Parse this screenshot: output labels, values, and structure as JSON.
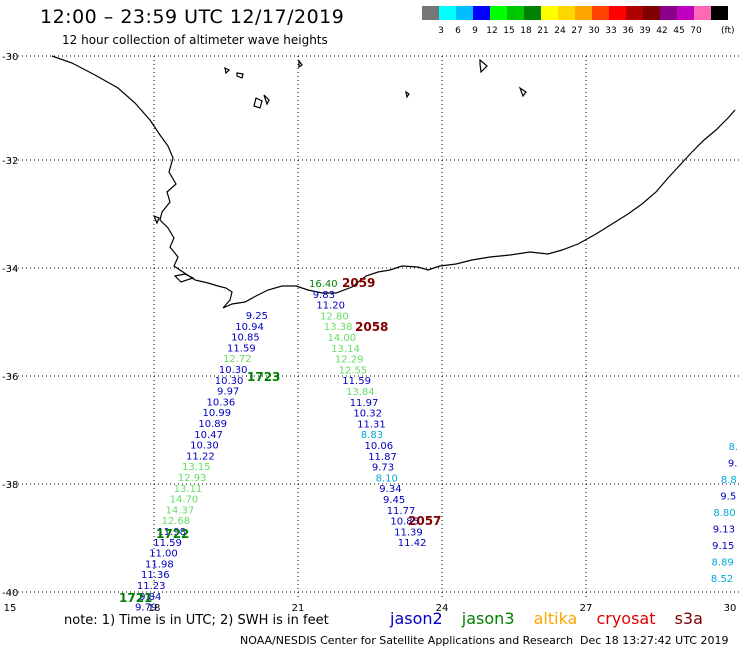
{
  "header": {
    "title": "12:00 – 23:59 UTC 12/17/2019",
    "subtitle": "12 hour collection of altimeter wave heights"
  },
  "colorbar": {
    "colors": [
      "#777777",
      "#00ffff",
      "#00bfff",
      "#0000ff",
      "#00ff00",
      "#00c800",
      "#008000",
      "#ffff00",
      "#ffd700",
      "#ffa500",
      "#ff4500",
      "#ff0000",
      "#b00000",
      "#800000",
      "#8b008b",
      "#c000c0",
      "#ff69b4",
      "#000000"
    ],
    "labels": [
      "3",
      "6",
      "9",
      "12",
      "15",
      "18",
      "21",
      "24",
      "27",
      "30",
      "33",
      "36",
      "39",
      "42",
      "45",
      "70"
    ],
    "unit": "(ft)"
  },
  "axes": {
    "lon_ticks": [
      "15",
      "18",
      "21",
      "24",
      "27",
      "30"
    ],
    "lat_ticks": [
      "-30",
      "-32",
      "-34",
      "-36",
      "-38",
      "-40"
    ]
  },
  "tracks": [
    {
      "label": "1723",
      "color": "#008000",
      "pts": [
        [
          "9.25",
          "#0000c0"
        ],
        [
          "10.94",
          "#0000c0"
        ],
        [
          "10.85",
          "#0000c0"
        ],
        [
          "11.59",
          "#0000c0"
        ],
        [
          "12.72",
          "#66dd66"
        ],
        [
          "10.30",
          "#0000c0"
        ],
        [
          "10.30",
          "#0000c0"
        ],
        [
          "9.97",
          "#0000c0"
        ],
        [
          "10.36",
          "#0000c0"
        ],
        [
          "10.99",
          "#0000c0"
        ],
        [
          "10.89",
          "#0000c0"
        ],
        [
          "10.47",
          "#0000c0"
        ],
        [
          "10.30",
          "#0000c0"
        ],
        [
          "11.22",
          "#0000c0"
        ],
        [
          "13.15",
          "#66dd66"
        ],
        [
          "12.93",
          "#66dd66"
        ],
        [
          "13.11",
          "#66dd66"
        ],
        [
          "14.70",
          "#66dd66"
        ],
        [
          "14.37",
          "#66dd66"
        ],
        [
          "12.68",
          "#66dd66"
        ],
        [
          "11.98",
          "#0000c0"
        ],
        [
          "11.59",
          "#0000c0"
        ],
        [
          "11.00",
          "#0000c0"
        ],
        [
          "11.98",
          "#0000c0"
        ],
        [
          "11.36",
          "#0000c0"
        ],
        [
          "11.23",
          "#0000c0"
        ],
        [
          "9.84",
          "#0000c0"
        ],
        [
          "9.79",
          "#0000c0"
        ]
      ]
    },
    {
      "label": "2059",
      "color": "#800000",
      "pts": [
        [
          "16.40",
          "#008000"
        ],
        [
          "9.83",
          "#0000c0"
        ],
        [
          "11.20",
          "#0000c0"
        ],
        [
          "12.80",
          "#66dd66"
        ],
        [
          "13.38",
          "#66dd66"
        ],
        [
          "14.00",
          "#66dd66"
        ],
        [
          "13.14",
          "#66dd66"
        ],
        [
          "12.29",
          "#66dd66"
        ],
        [
          "12.55",
          "#66dd66"
        ],
        [
          "11.59",
          "#0000c0"
        ],
        [
          "13.84",
          "#66dd66"
        ],
        [
          "11.97",
          "#0000c0"
        ],
        [
          "10.32",
          "#0000c0"
        ],
        [
          "11.31",
          "#0000c0"
        ],
        [
          "8.83",
          "#00aadd"
        ],
        [
          "10.06",
          "#0000c0"
        ],
        [
          "11.87",
          "#0000c0"
        ],
        [
          "9.73",
          "#0000c0"
        ],
        [
          "8.10",
          "#00aadd"
        ],
        [
          "9.34",
          "#0000c0"
        ],
        [
          "9.45",
          "#0000c0"
        ],
        [
          "11.77",
          "#0000c0"
        ],
        [
          "10.85",
          "#0000c0"
        ],
        [
          "11.39",
          "#0000c0"
        ],
        [
          "11.42",
          "#0000c0"
        ]
      ]
    },
    {
      "label": "",
      "color": "#000",
      "pts": [
        [
          "8.",
          "#00aadd"
        ],
        [
          "9.",
          "#0000c0"
        ],
        [
          "8.8",
          "#00aadd"
        ],
        [
          "9.5",
          "#0000c0"
        ],
        [
          "8.80",
          "#00aadd"
        ],
        [
          "9.13",
          "#0000c0"
        ],
        [
          "9.15",
          "#0000c0"
        ],
        [
          "8.89",
          "#00aadd"
        ],
        [
          "8.52",
          "#00aadd"
        ]
      ]
    }
  ],
  "track_labels": [
    {
      "text": "1723",
      "color": "#008000"
    },
    {
      "text": "1722",
      "color": "#008000"
    },
    {
      "text": "1721",
      "color": "#008000"
    },
    {
      "text": "2059",
      "color": "#800000"
    },
    {
      "text": "2058",
      "color": "#800000"
    },
    {
      "text": "2057",
      "color": "#800000"
    }
  ],
  "footer": {
    "note": "note:  1) Time is in UTC;  2) SWH is in feet",
    "satellites": [
      {
        "name": "jason2",
        "color": "#0000c0"
      },
      {
        "name": "jason3",
        "color": "#008000"
      },
      {
        "name": "altika",
        "color": "#ffa500"
      },
      {
        "name": "cryosat",
        "color": "#e00000"
      },
      {
        "name": "s3a",
        "color": "#800000"
      }
    ],
    "credit": "NOAA/NESDIS Center for Satellite Applications and Research",
    "timestamp": "Dec 18 13:27:42 UTC 2019"
  }
}
